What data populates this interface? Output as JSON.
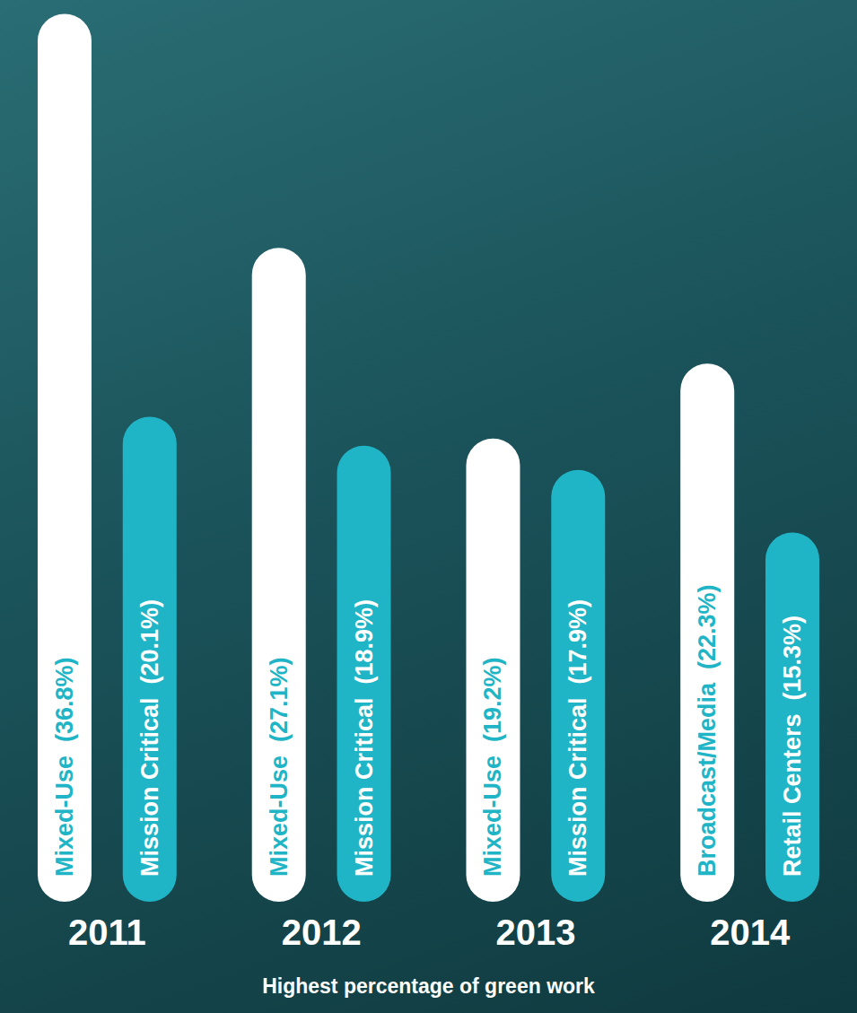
{
  "chart_data": {
    "type": "bar",
    "xlabel": "Highest percentage of green work",
    "categories": [
      "2011",
      "2012",
      "2013",
      "2014"
    ],
    "series": [
      {
        "color": "#ffffff",
        "values": [
          36.8,
          27.1,
          19.2,
          22.3
        ],
        "value_labels": [
          "Mixed-Use  (36.8%)",
          "Mixed-Use  (27.1%)",
          "Mixed-Use  (19.2%)",
          "Broadcast/Media  (22.3%)"
        ]
      },
      {
        "color": "#1fb5c6",
        "values": [
          20.1,
          18.9,
          17.9,
          15.3
        ],
        "value_labels": [
          "Mission Critical  (20.1%)",
          "Mission Critical  (18.9%)",
          "Mission Critical  (17.9%)",
          "Retail Centers  (15.3%)"
        ]
      }
    ],
    "ylim": [
      0,
      37
    ],
    "grid": false,
    "data_labels": true,
    "tick_labels": "x"
  }
}
